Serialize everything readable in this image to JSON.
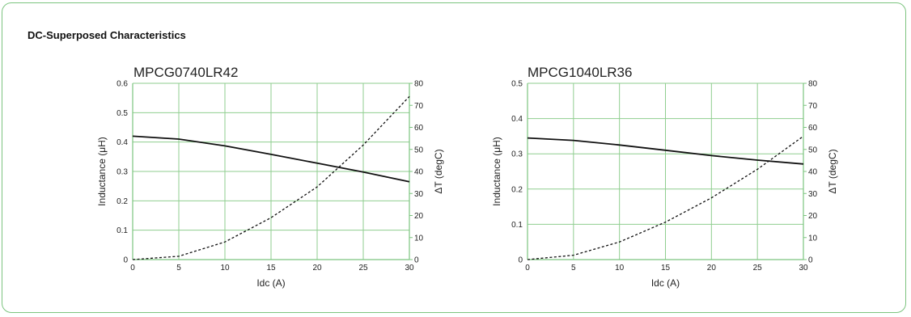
{
  "section": {
    "title": "DC-Superposed Characteristics"
  },
  "colors": {
    "frame": "#7cc47f",
    "grid": "#8fce8f",
    "axis": "#7cc47f",
    "line": "#111111"
  },
  "chart_data": [
    {
      "type": "line",
      "title": "MPCG0740LR42",
      "xlabel": "Idc (A)",
      "ylabel": "Inductance (μH)",
      "y2label": "ΔT (degC)",
      "xlim": [
        0,
        30
      ],
      "ylim": [
        0,
        0.6
      ],
      "y2lim": [
        0,
        80
      ],
      "x_ticks": [
        "0",
        "5",
        "10",
        "15",
        "20",
        "25",
        "30"
      ],
      "y_ticks": [
        "0",
        "0.1",
        "0.2",
        "0.3",
        "0.4",
        "0.5",
        "0.6"
      ],
      "y2_ticks": [
        "0",
        "10",
        "20",
        "30",
        "40",
        "50",
        "60",
        "70",
        "80"
      ],
      "series": [
        {
          "style": "solid",
          "axis": "left",
          "x": [
            0,
            5,
            10,
            15,
            20,
            25,
            30
          ],
          "y": [
            0.42,
            0.41,
            0.387,
            0.358,
            0.328,
            0.298,
            0.265
          ]
        },
        {
          "style": "dashed",
          "axis": "right",
          "x": [
            0,
            5,
            10,
            15,
            20,
            25,
            30
          ],
          "y": [
            0,
            1.5,
            8,
            19,
            33,
            52,
            74
          ]
        }
      ]
    },
    {
      "type": "line",
      "title": "MPCG1040LR36",
      "xlabel": "Idc (A)",
      "ylabel": "Inductance (μH)",
      "y2label": "ΔT (degC)",
      "xlim": [
        0,
        30
      ],
      "ylim": [
        0,
        0.5
      ],
      "y2lim": [
        0,
        80
      ],
      "x_ticks": [
        "0",
        "5",
        "10",
        "15",
        "20",
        "25",
        "30"
      ],
      "y_ticks": [
        "0",
        "0.1",
        "0.2",
        "0.3",
        "0.4",
        "0.5"
      ],
      "y2_ticks": [
        "0",
        "10",
        "20",
        "30",
        "40",
        "50",
        "60",
        "70",
        "80"
      ],
      "series": [
        {
          "style": "solid",
          "axis": "left",
          "x": [
            0,
            5,
            10,
            15,
            20,
            25,
            30
          ],
          "y": [
            0.345,
            0.338,
            0.325,
            0.31,
            0.295,
            0.282,
            0.271
          ]
        },
        {
          "style": "dashed",
          "axis": "right",
          "x": [
            0,
            5,
            10,
            15,
            20,
            25,
            30
          ],
          "y": [
            0,
            2,
            8,
            17,
            28,
            41,
            56
          ]
        }
      ]
    }
  ]
}
